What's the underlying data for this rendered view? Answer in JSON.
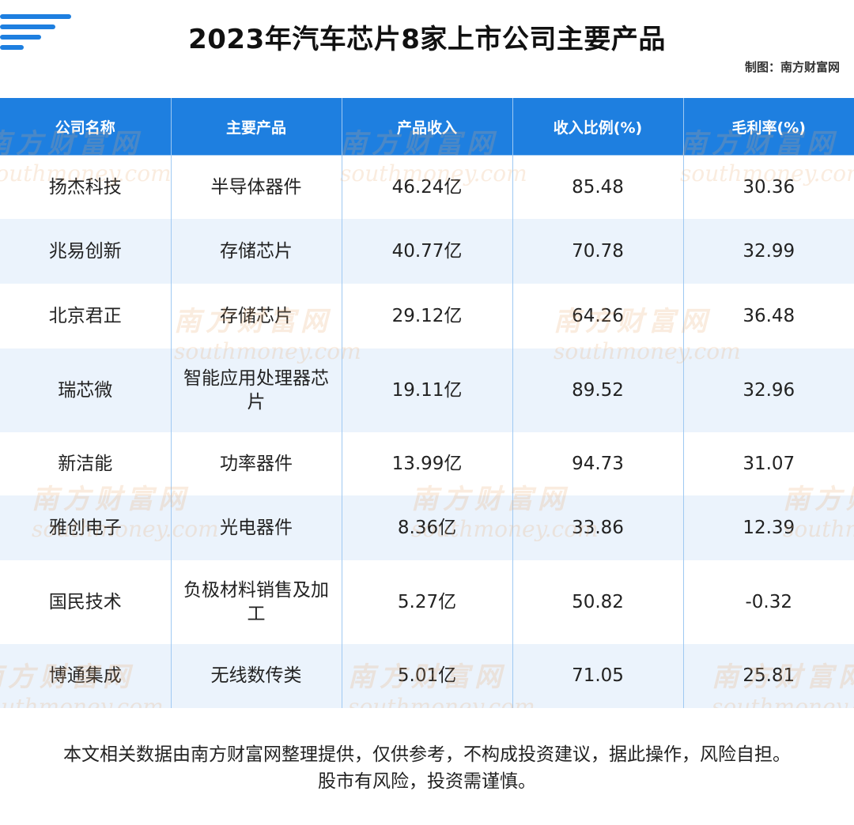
{
  "header": {
    "title": "2023年汽车芯片8家上市公司主要产品",
    "source": "制图：南方财富网"
  },
  "table": {
    "columns": [
      "公司名称",
      "主要产品",
      "产品收入",
      "收入比例(%)",
      "毛利率(%)"
    ],
    "rows": [
      [
        "扬杰科技",
        "半导体器件",
        "46.24亿",
        "85.48",
        "30.36"
      ],
      [
        "兆易创新",
        "存储芯片",
        "40.77亿",
        "70.78",
        "32.99"
      ],
      [
        "北京君正",
        "存储芯片",
        "29.12亿",
        "64.26",
        "36.48"
      ],
      [
        "瑞芯微",
        "智能应用处理器芯片",
        "19.11亿",
        "89.52",
        "32.96"
      ],
      [
        "新洁能",
        "功率器件",
        "13.99亿",
        "94.73",
        "31.07"
      ],
      [
        "雅创电子",
        "光电器件",
        "8.36亿",
        "33.86",
        "12.39"
      ],
      [
        "国民技术",
        "负极材料销售及加工",
        "5.27亿",
        "50.82",
        "-0.32"
      ],
      [
        "博通集成",
        "无线数传类",
        "5.01亿",
        "71.05",
        "25.81"
      ]
    ]
  },
  "watermark": {
    "cn": "南方财富网",
    "en": "southmoney.com"
  },
  "footer": {
    "disclaimer": "本文相关数据由南方财富网整理提供，仅供参考，不构成投资建议，据此操作，风险自担。股市有风险，投资需谨慎。"
  },
  "colors": {
    "header_bg": "#1e7fe0",
    "row_alt_bg": "#e8f1fb",
    "watermark": "#e6aa6e"
  }
}
